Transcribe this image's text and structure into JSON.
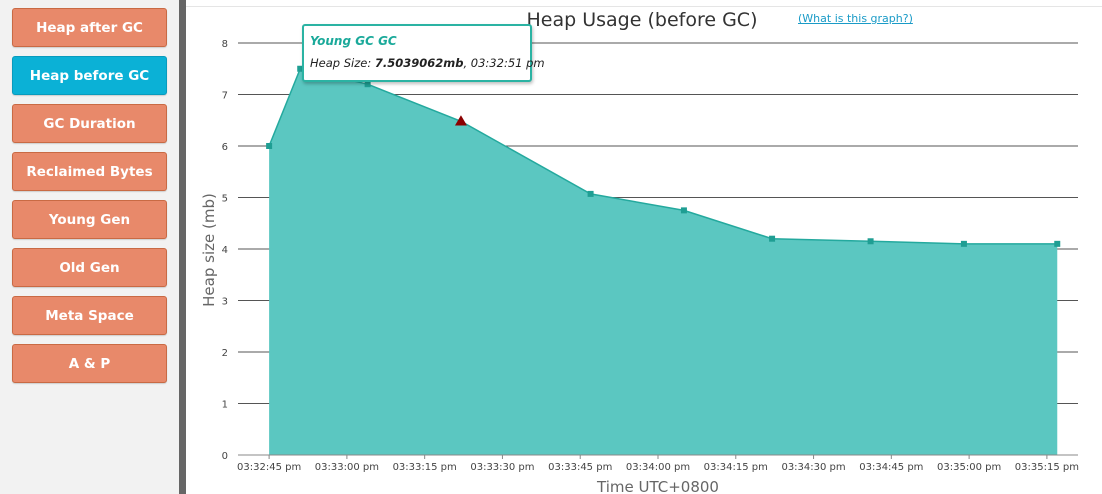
{
  "sidebar": {
    "items": [
      {
        "label": "Heap after GC",
        "active": false
      },
      {
        "label": "Heap before GC",
        "active": true
      },
      {
        "label": "GC Duration",
        "active": false
      },
      {
        "label": "Reclaimed Bytes",
        "active": false
      },
      {
        "label": "Young Gen",
        "active": false
      },
      {
        "label": "Old Gen",
        "active": false
      },
      {
        "label": "Meta Space",
        "active": false
      },
      {
        "label": "A & P",
        "active": false
      }
    ]
  },
  "help_link": "(What is this graph?)",
  "tooltip": {
    "title": "Young GC GC",
    "label": "Heap Size:",
    "value": "7.5039062mb",
    "time": "03:32:51 pm"
  },
  "colors": {
    "area_fill": "#5bc7c1",
    "area_line": "#24a99e",
    "marker": "#1f9e93",
    "highlight_marker": "#8b0000",
    "button": "#e8896a",
    "button_active": "#0bb1d6"
  },
  "chart_data": {
    "type": "area",
    "title": "Heap Usage (before GC)",
    "xlabel": "Time UTC+0800",
    "ylabel": "Heap size (mb)",
    "ylim": [
      0,
      8
    ],
    "yticks": [
      0,
      1,
      2,
      3,
      4,
      5,
      6,
      7,
      8
    ],
    "xlim": [
      "03:32:39",
      "03:35:21"
    ],
    "xticks": [
      "03:32:45 pm",
      "03:33:00 pm",
      "03:33:15 pm",
      "03:33:30 pm",
      "03:33:45 pm",
      "03:34:00 pm",
      "03:34:15 pm",
      "03:34:30 pm",
      "03:34:45 pm",
      "03:35:00 pm",
      "03:35:15 pm"
    ],
    "grid": true,
    "series": [
      {
        "x": [
          "03:32:45",
          "03:32:51",
          "03:33:04",
          "03:33:22",
          "03:33:47",
          "03:34:05",
          "03:34:22",
          "03:34:41",
          "03:34:59",
          "03:35:17"
        ],
        "values": [
          6.0,
          7.5,
          7.2,
          6.48,
          5.07,
          4.75,
          4.2,
          4.15,
          4.1,
          4.1
        ]
      }
    ],
    "highlight_index": 3
  }
}
